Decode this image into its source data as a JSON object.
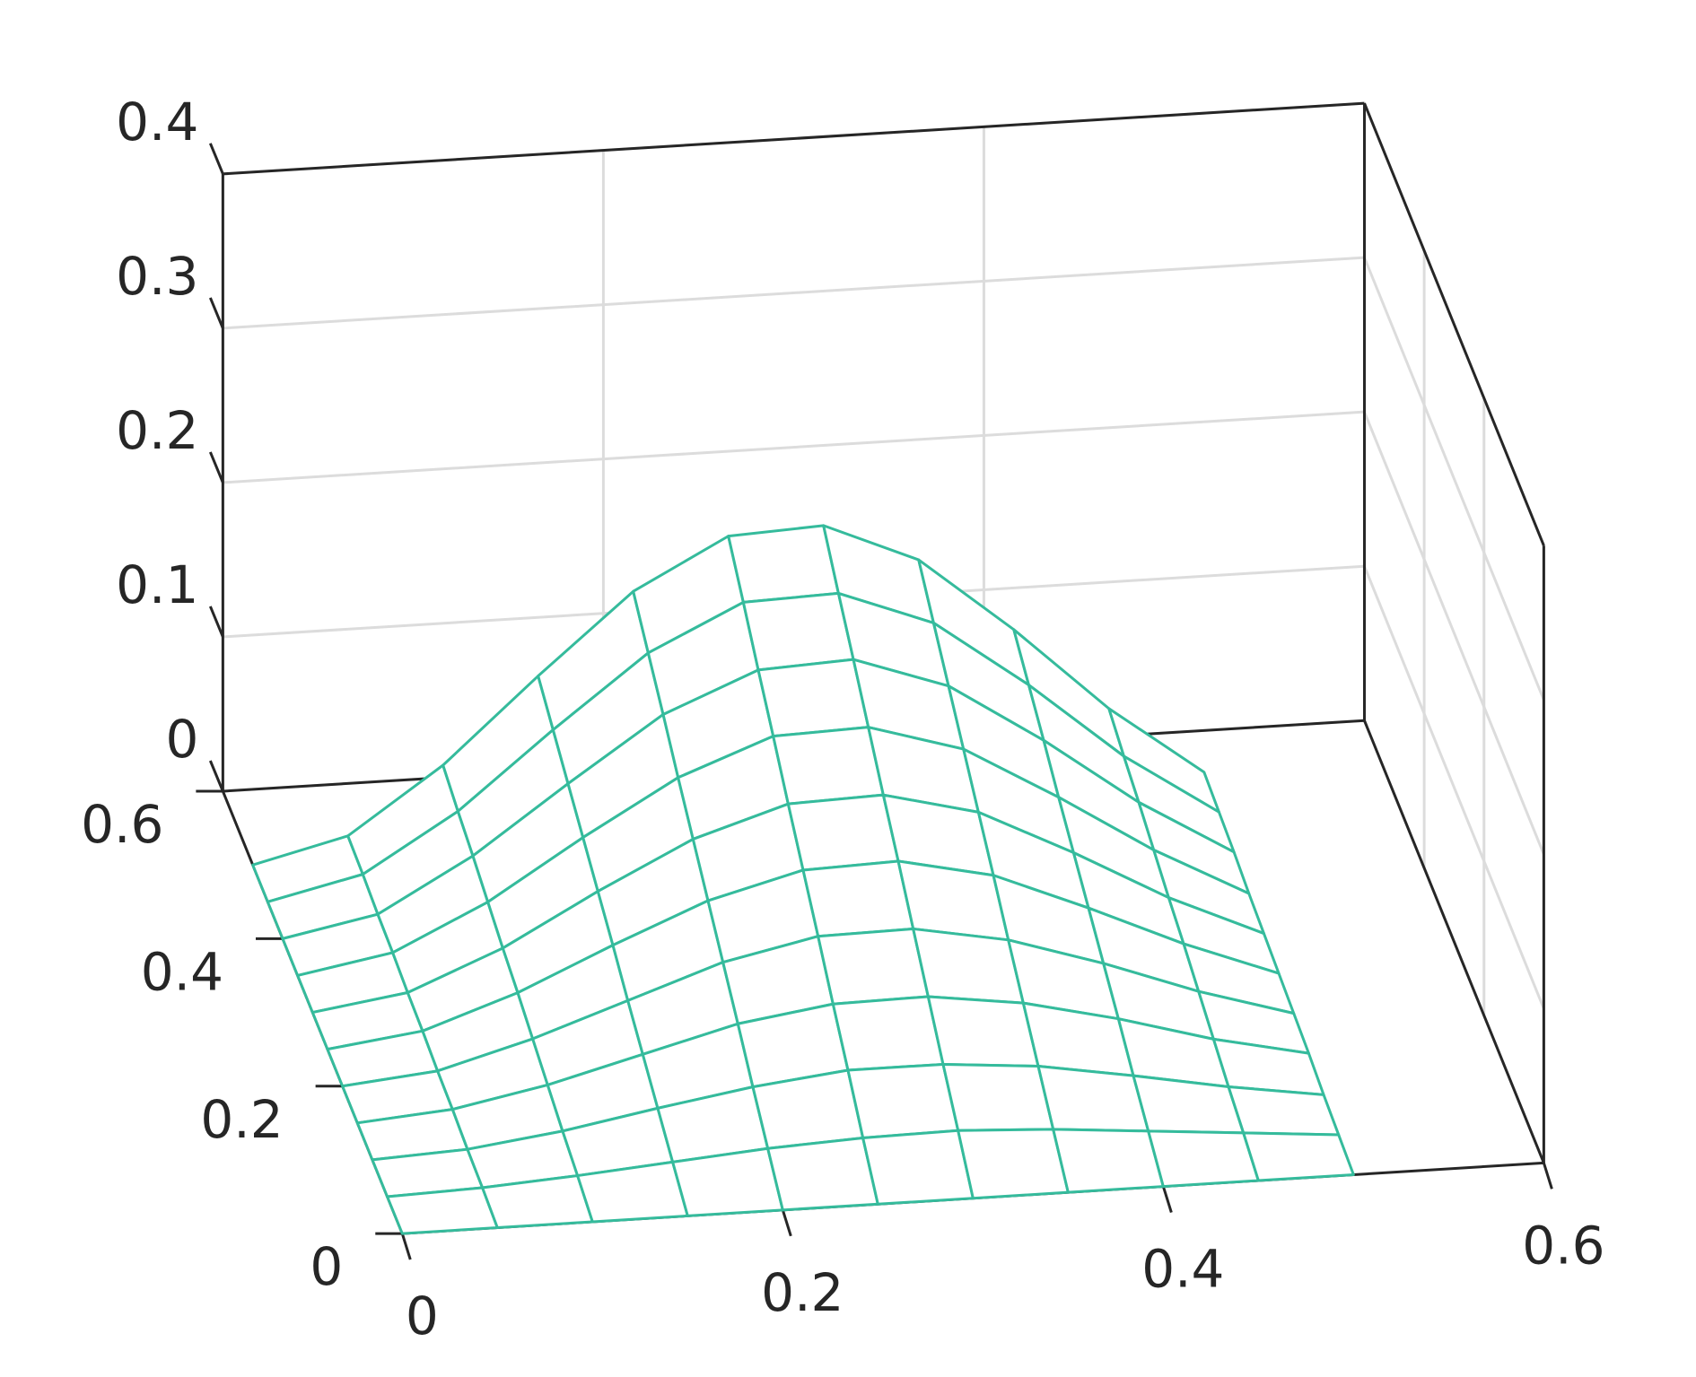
{
  "chart_data": {
    "type": "mesh3d",
    "x": [
      0,
      0.05,
      0.1,
      0.15,
      0.2,
      0.25,
      0.3,
      0.35,
      0.4,
      0.45,
      0.5
    ],
    "y": [
      0,
      0.05,
      0.1,
      0.15,
      0.2,
      0.25,
      0.3,
      0.35,
      0.4,
      0.45,
      0.5
    ],
    "z": [
      [
        0,
        0,
        0,
        0,
        0,
        0,
        0,
        0,
        0,
        0,
        0
      ],
      [
        0,
        0.002,
        0.006,
        0.011,
        0.016,
        0.019,
        0.02,
        0.017,
        0.012,
        0.007,
        0.002
      ],
      [
        0,
        0.003,
        0.011,
        0.022,
        0.032,
        0.039,
        0.039,
        0.034,
        0.024,
        0.013,
        0.004
      ],
      [
        0,
        0.005,
        0.017,
        0.033,
        0.049,
        0.058,
        0.059,
        0.051,
        0.037,
        0.02,
        0.007
      ],
      [
        0,
        0.006,
        0.023,
        0.044,
        0.065,
        0.078,
        0.079,
        0.068,
        0.049,
        0.027,
        0.009
      ],
      [
        0,
        0.008,
        0.029,
        0.056,
        0.081,
        0.097,
        0.099,
        0.086,
        0.061,
        0.034,
        0.011
      ],
      [
        0,
        0.009,
        0.034,
        0.067,
        0.097,
        0.116,
        0.118,
        0.103,
        0.073,
        0.04,
        0.013
      ],
      [
        0,
        0.011,
        0.04,
        0.078,
        0.113,
        0.136,
        0.138,
        0.12,
        0.085,
        0.047,
        0.015
      ],
      [
        0,
        0.012,
        0.046,
        0.089,
        0.13,
        0.155,
        0.158,
        0.137,
        0.098,
        0.054,
        0.018
      ],
      [
        0,
        0.014,
        0.051,
        0.1,
        0.146,
        0.175,
        0.177,
        0.154,
        0.11,
        0.06,
        0.02
      ],
      [
        0,
        0.015,
        0.057,
        0.111,
        0.162,
        0.194,
        0.197,
        0.171,
        0.122,
        0.067,
        0.022
      ]
    ],
    "color": "#35bb9c",
    "xlim": [
      0,
      0.6
    ],
    "ylim": [
      0,
      0.6
    ],
    "zlim": [
      0,
      0.4
    ],
    "xticks": [
      0,
      0.2,
      0.4,
      0.6
    ],
    "yticks": [
      0,
      0.2,
      0.4,
      0.6
    ],
    "zticks": [
      0,
      0.1,
      0.2,
      0.3,
      0.4
    ],
    "grid": true
  }
}
